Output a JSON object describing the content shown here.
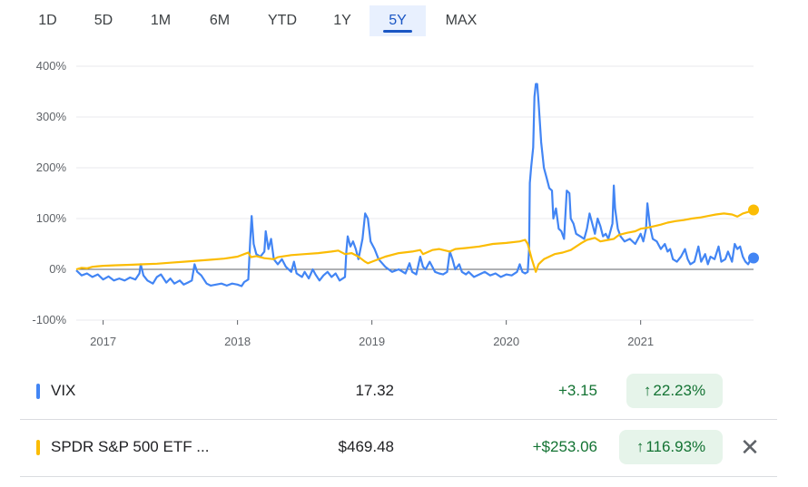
{
  "range_tabs": [
    {
      "label": "1D",
      "selected": false
    },
    {
      "label": "5D",
      "selected": false
    },
    {
      "label": "1M",
      "selected": false
    },
    {
      "label": "6M",
      "selected": false
    },
    {
      "label": "YTD",
      "selected": false
    },
    {
      "label": "1Y",
      "selected": false
    },
    {
      "label": "5Y",
      "selected": true
    },
    {
      "label": "MAX",
      "selected": false
    }
  ],
  "chart_data": {
    "type": "line",
    "x_unit": "year",
    "xlim": [
      2016.8,
      2021.84
    ],
    "ylim": [
      -100,
      400
    ],
    "y_ticks": [
      -100,
      0,
      100,
      200,
      300,
      400
    ],
    "y_tick_labels": [
      "-100%",
      "0%",
      "100%",
      "200%",
      "300%",
      "400%"
    ],
    "x_ticks": [
      2017,
      2018,
      2019,
      2020,
      2021
    ],
    "x_tick_labels": [
      "2017",
      "2018",
      "2019",
      "2020",
      "2021"
    ],
    "grid": true,
    "series": [
      {
        "name": "VIX",
        "color": "#4285f4",
        "points": [
          [
            2016.8,
            -2
          ],
          [
            2016.84,
            -12
          ],
          [
            2016.88,
            -8
          ],
          [
            2016.92,
            -15
          ],
          [
            2016.96,
            -10
          ],
          [
            2017.0,
            -20
          ],
          [
            2017.04,
            -14
          ],
          [
            2017.08,
            -22
          ],
          [
            2017.12,
            -18
          ],
          [
            2017.16,
            -22
          ],
          [
            2017.2,
            -16
          ],
          [
            2017.24,
            -20
          ],
          [
            2017.27,
            -8
          ],
          [
            2017.28,
            10
          ],
          [
            2017.3,
            -12
          ],
          [
            2017.33,
            -22
          ],
          [
            2017.37,
            -28
          ],
          [
            2017.4,
            -15
          ],
          [
            2017.43,
            -10
          ],
          [
            2017.47,
            -26
          ],
          [
            2017.5,
            -18
          ],
          [
            2017.53,
            -28
          ],
          [
            2017.57,
            -22
          ],
          [
            2017.6,
            -30
          ],
          [
            2017.63,
            -26
          ],
          [
            2017.66,
            -22
          ],
          [
            2017.68,
            10
          ],
          [
            2017.7,
            -5
          ],
          [
            2017.73,
            -12
          ],
          [
            2017.77,
            -28
          ],
          [
            2017.8,
            -32
          ],
          [
            2017.84,
            -30
          ],
          [
            2017.88,
            -28
          ],
          [
            2017.92,
            -32
          ],
          [
            2017.96,
            -28
          ],
          [
            2018.0,
            -30
          ],
          [
            2018.03,
            -33
          ],
          [
            2018.05,
            -25
          ],
          [
            2018.08,
            -20
          ],
          [
            2018.095,
            60
          ],
          [
            2018.105,
            105
          ],
          [
            2018.12,
            50
          ],
          [
            2018.14,
            30
          ],
          [
            2018.17,
            25
          ],
          [
            2018.2,
            35
          ],
          [
            2018.21,
            75
          ],
          [
            2018.23,
            40
          ],
          [
            2018.25,
            60
          ],
          [
            2018.27,
            20
          ],
          [
            2018.3,
            10
          ],
          [
            2018.33,
            20
          ],
          [
            2018.36,
            5
          ],
          [
            2018.4,
            -5
          ],
          [
            2018.42,
            15
          ],
          [
            2018.44,
            -8
          ],
          [
            2018.48,
            -15
          ],
          [
            2018.5,
            -5
          ],
          [
            2018.53,
            -18
          ],
          [
            2018.56,
            0
          ],
          [
            2018.58,
            -10
          ],
          [
            2018.61,
            -22
          ],
          [
            2018.64,
            -12
          ],
          [
            2018.67,
            -5
          ],
          [
            2018.7,
            -15
          ],
          [
            2018.73,
            -8
          ],
          [
            2018.76,
            -22
          ],
          [
            2018.8,
            -15
          ],
          [
            2018.81,
            35
          ],
          [
            2018.82,
            65
          ],
          [
            2018.84,
            45
          ],
          [
            2018.86,
            55
          ],
          [
            2018.88,
            40
          ],
          [
            2018.9,
            20
          ],
          [
            2018.93,
            60
          ],
          [
            2018.95,
            110
          ],
          [
            2018.97,
            100
          ],
          [
            2018.99,
            55
          ],
          [
            2019.02,
            40
          ],
          [
            2019.05,
            20
          ],
          [
            2019.1,
            5
          ],
          [
            2019.15,
            -5
          ],
          [
            2019.2,
            0
          ],
          [
            2019.25,
            -8
          ],
          [
            2019.28,
            12
          ],
          [
            2019.3,
            -5
          ],
          [
            2019.33,
            -10
          ],
          [
            2019.36,
            25
          ],
          [
            2019.38,
            5
          ],
          [
            2019.4,
            0
          ],
          [
            2019.43,
            15
          ],
          [
            2019.47,
            -5
          ],
          [
            2019.5,
            -8
          ],
          [
            2019.53,
            -10
          ],
          [
            2019.56,
            -5
          ],
          [
            2019.58,
            35
          ],
          [
            2019.6,
            20
          ],
          [
            2019.62,
            0
          ],
          [
            2019.65,
            10
          ],
          [
            2019.67,
            -5
          ],
          [
            2019.7,
            -10
          ],
          [
            2019.72,
            -5
          ],
          [
            2019.76,
            -15
          ],
          [
            2019.8,
            -10
          ],
          [
            2019.84,
            -5
          ],
          [
            2019.88,
            -12
          ],
          [
            2019.92,
            -8
          ],
          [
            2019.96,
            -15
          ],
          [
            2020.0,
            -10
          ],
          [
            2020.04,
            -12
          ],
          [
            2020.08,
            -5
          ],
          [
            2020.1,
            10
          ],
          [
            2020.12,
            -5
          ],
          [
            2020.14,
            -8
          ],
          [
            2020.16,
            -5
          ],
          [
            2020.17,
            40
          ],
          [
            2020.175,
            170
          ],
          [
            2020.185,
            200
          ],
          [
            2020.2,
            240
          ],
          [
            2020.21,
            340
          ],
          [
            2020.22,
            365
          ],
          [
            2020.23,
            365
          ],
          [
            2020.24,
            330
          ],
          [
            2020.26,
            250
          ],
          [
            2020.28,
            200
          ],
          [
            2020.3,
            180
          ],
          [
            2020.32,
            160
          ],
          [
            2020.34,
            155
          ],
          [
            2020.35,
            100
          ],
          [
            2020.37,
            120
          ],
          [
            2020.39,
            80
          ],
          [
            2020.41,
            75
          ],
          [
            2020.43,
            60
          ],
          [
            2020.45,
            155
          ],
          [
            2020.47,
            150
          ],
          [
            2020.48,
            100
          ],
          [
            2020.5,
            90
          ],
          [
            2020.52,
            70
          ],
          [
            2020.55,
            65
          ],
          [
            2020.58,
            60
          ],
          [
            2020.6,
            80
          ],
          [
            2020.62,
            110
          ],
          [
            2020.64,
            90
          ],
          [
            2020.66,
            70
          ],
          [
            2020.68,
            100
          ],
          [
            2020.7,
            85
          ],
          [
            2020.72,
            65
          ],
          [
            2020.74,
            70
          ],
          [
            2020.76,
            60
          ],
          [
            2020.79,
            90
          ],
          [
            2020.8,
            165
          ],
          [
            2020.81,
            120
          ],
          [
            2020.83,
            80
          ],
          [
            2020.85,
            65
          ],
          [
            2020.88,
            55
          ],
          [
            2020.92,
            60
          ],
          [
            2020.96,
            50
          ],
          [
            2021.0,
            70
          ],
          [
            2021.02,
            55
          ],
          [
            2021.04,
            80
          ],
          [
            2021.05,
            130
          ],
          [
            2021.07,
            85
          ],
          [
            2021.09,
            60
          ],
          [
            2021.12,
            55
          ],
          [
            2021.15,
            40
          ],
          [
            2021.18,
            50
          ],
          [
            2021.2,
            35
          ],
          [
            2021.22,
            40
          ],
          [
            2021.24,
            20
          ],
          [
            2021.27,
            15
          ],
          [
            2021.3,
            25
          ],
          [
            2021.33,
            40
          ],
          [
            2021.35,
            20
          ],
          [
            2021.37,
            10
          ],
          [
            2021.4,
            15
          ],
          [
            2021.43,
            45
          ],
          [
            2021.45,
            15
          ],
          [
            2021.48,
            30
          ],
          [
            2021.5,
            10
          ],
          [
            2021.52,
            25
          ],
          [
            2021.55,
            20
          ],
          [
            2021.58,
            45
          ],
          [
            2021.6,
            15
          ],
          [
            2021.63,
            20
          ],
          [
            2021.65,
            35
          ],
          [
            2021.68,
            15
          ],
          [
            2021.7,
            50
          ],
          [
            2021.72,
            40
          ],
          [
            2021.74,
            45
          ],
          [
            2021.76,
            25
          ],
          [
            2021.78,
            15
          ],
          [
            2021.8,
            10
          ],
          [
            2021.82,
            20
          ],
          [
            2021.84,
            22.23
          ]
        ]
      },
      {
        "name": "SPDR S&P 500 ETF ...",
        "color": "#fbbc04",
        "points": [
          [
            2016.8,
            0
          ],
          [
            2016.84,
            3
          ],
          [
            2016.88,
            2
          ],
          [
            2016.92,
            5
          ],
          [
            2016.96,
            6
          ],
          [
            2017.0,
            7
          ],
          [
            2017.1,
            8
          ],
          [
            2017.2,
            9
          ],
          [
            2017.3,
            10
          ],
          [
            2017.4,
            11
          ],
          [
            2017.5,
            13
          ],
          [
            2017.6,
            15
          ],
          [
            2017.7,
            17
          ],
          [
            2017.8,
            19
          ],
          [
            2017.9,
            21
          ],
          [
            2018.0,
            25
          ],
          [
            2018.05,
            30
          ],
          [
            2018.08,
            33
          ],
          [
            2018.1,
            24
          ],
          [
            2018.14,
            26
          ],
          [
            2018.2,
            22
          ],
          [
            2018.27,
            20
          ],
          [
            2018.3,
            24
          ],
          [
            2018.4,
            28
          ],
          [
            2018.5,
            30
          ],
          [
            2018.6,
            32
          ],
          [
            2018.7,
            35
          ],
          [
            2018.75,
            37
          ],
          [
            2018.8,
            30
          ],
          [
            2018.85,
            32
          ],
          [
            2018.9,
            25
          ],
          [
            2018.95,
            15
          ],
          [
            2018.97,
            12
          ],
          [
            2019.0,
            15
          ],
          [
            2019.1,
            25
          ],
          [
            2019.2,
            32
          ],
          [
            2019.3,
            35
          ],
          [
            2019.36,
            38
          ],
          [
            2019.38,
            30
          ],
          [
            2019.45,
            38
          ],
          [
            2019.5,
            40
          ],
          [
            2019.58,
            35
          ],
          [
            2019.62,
            40
          ],
          [
            2019.7,
            42
          ],
          [
            2019.8,
            45
          ],
          [
            2019.9,
            50
          ],
          [
            2020.0,
            52
          ],
          [
            2020.1,
            55
          ],
          [
            2020.14,
            58
          ],
          [
            2020.16,
            50
          ],
          [
            2020.19,
            20
          ],
          [
            2020.22,
            -5
          ],
          [
            2020.24,
            10
          ],
          [
            2020.26,
            15
          ],
          [
            2020.28,
            20
          ],
          [
            2020.32,
            25
          ],
          [
            2020.36,
            30
          ],
          [
            2020.42,
            33
          ],
          [
            2020.48,
            38
          ],
          [
            2020.52,
            45
          ],
          [
            2020.56,
            52
          ],
          [
            2020.6,
            58
          ],
          [
            2020.66,
            62
          ],
          [
            2020.7,
            55
          ],
          [
            2020.76,
            58
          ],
          [
            2020.8,
            60
          ],
          [
            2020.84,
            68
          ],
          [
            2020.9,
            72
          ],
          [
            2020.96,
            75
          ],
          [
            2021.0,
            80
          ],
          [
            2021.05,
            82
          ],
          [
            2021.1,
            85
          ],
          [
            2021.15,
            88
          ],
          [
            2021.2,
            92
          ],
          [
            2021.26,
            95
          ],
          [
            2021.32,
            97
          ],
          [
            2021.38,
            100
          ],
          [
            2021.44,
            102
          ],
          [
            2021.5,
            105
          ],
          [
            2021.56,
            108
          ],
          [
            2021.62,
            110
          ],
          [
            2021.68,
            108
          ],
          [
            2021.72,
            104
          ],
          [
            2021.76,
            110
          ],
          [
            2021.8,
            113
          ],
          [
            2021.84,
            116.93
          ]
        ]
      }
    ]
  },
  "legend": [
    {
      "name": "VIX",
      "price": "17.32",
      "change": "+3.15",
      "pct": "22.23%",
      "color": "#4285f4"
    },
    {
      "name": "SPDR S&P 500 ETF ...",
      "price": "$469.48",
      "change": "+$253.06",
      "pct": "116.93%",
      "color": "#fbbc04"
    }
  ],
  "icons": {
    "up_arrow": "arrow-up-icon",
    "remove": "close-icon"
  }
}
